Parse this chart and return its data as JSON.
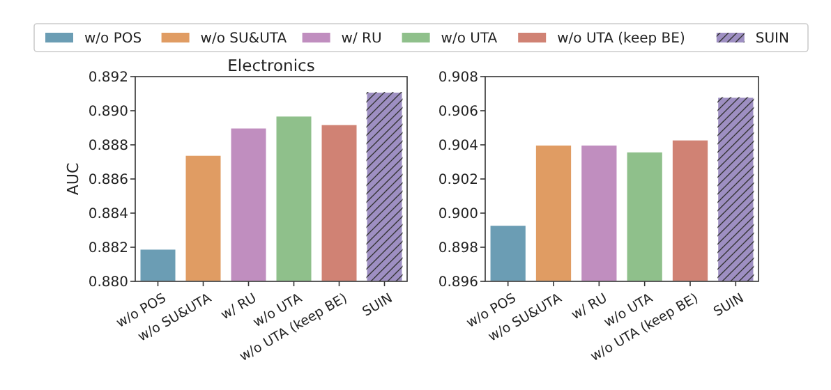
{
  "chart_data": [
    {
      "type": "bar",
      "title": "Electronics",
      "ylabel": "AUC",
      "categories": [
        "w/o POS",
        "w/o SU&UTA",
        "w/ RU",
        "w/o UTA",
        "w/o UTA (keep BE)",
        "SUIN"
      ],
      "series": [
        {
          "name": "w/o POS",
          "color": "#6b9db4",
          "values": [
            0.8819,
            null,
            null,
            null,
            null,
            null
          ]
        },
        {
          "name": "w/o SU&UTA",
          "color": "#e09c63",
          "values": [
            null,
            0.8874,
            null,
            null,
            null,
            null
          ]
        },
        {
          "name": "w/ RU",
          "color": "#c08ebf",
          "values": [
            null,
            null,
            0.889,
            null,
            null,
            null
          ]
        },
        {
          "name": "w/o UTA",
          "color": "#8fc08b",
          "values": [
            null,
            null,
            null,
            0.8897,
            null,
            null
          ]
        },
        {
          "name": "w/o UTA (keep BE)",
          "color": "#d08274",
          "values": [
            null,
            null,
            null,
            null,
            0.8892,
            null
          ]
        },
        {
          "name": "SUIN",
          "color": "#9e8fc2",
          "values": [
            null,
            null,
            null,
            null,
            null,
            0.8911
          ]
        }
      ],
      "ylim": [
        0.88,
        0.892
      ],
      "yticks": [
        {
          "value": 0.88,
          "label": "0.880"
        },
        {
          "value": 0.882,
          "label": "0.882"
        },
        {
          "value": 0.884,
          "label": "0.884"
        },
        {
          "value": 0.886,
          "label": "0.886"
        },
        {
          "value": 0.888,
          "label": "0.888"
        },
        {
          "value": 0.89,
          "label": "0.890"
        },
        {
          "value": 0.892,
          "label": "0.892"
        }
      ],
      "grid": false,
      "legend": "top"
    },
    {
      "type": "bar",
      "categories": [
        "w/o POS",
        "w/o SU&UTA",
        "w/ RU",
        "w/o UTA",
        "w/o UTA (keep BE)",
        "SUIN"
      ],
      "series": [
        {
          "color": "#6b9db4",
          "values": [
            0.8993,
            null,
            null,
            null,
            null,
            null
          ]
        },
        {
          "color": "#e09c63",
          "values": [
            null,
            0.904,
            null,
            null,
            null,
            null
          ]
        },
        {
          "color": "#c08ebf",
          "values": [
            null,
            null,
            0.904,
            null,
            null,
            null
          ]
        },
        {
          "color": "#8fc08b",
          "values": [
            null,
            null,
            null,
            0.9036,
            null,
            null
          ]
        },
        {
          "color": "#d08274",
          "values": [
            null,
            null,
            null,
            null,
            0.9043,
            null
          ]
        },
        {
          "color": "#9e8fc2",
          "values": [
            null,
            null,
            null,
            null,
            null,
            0.9068
          ]
        }
      ],
      "ylim": [
        0.896,
        0.908
      ],
      "yticks": [
        {
          "value": 0.896,
          "label": "0.896"
        },
        {
          "value": 0.898,
          "label": "0.898"
        },
        {
          "value": 0.9,
          "label": "0.900"
        },
        {
          "value": 0.902,
          "label": "0.902"
        },
        {
          "value": 0.904,
          "label": "0.904"
        },
        {
          "value": 0.906,
          "label": "0.906"
        },
        {
          "value": 0.908,
          "label": "0.908"
        }
      ],
      "grid": false
    }
  ]
}
